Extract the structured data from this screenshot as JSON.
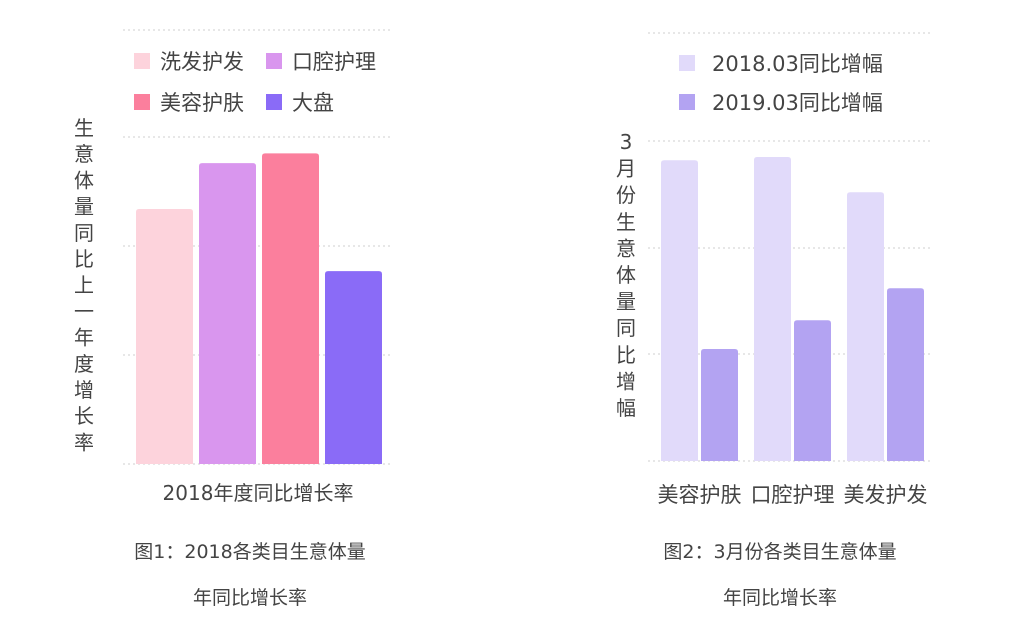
{
  "charts": [
    {
      "caption_line1": "图1：2018各类目生意体量",
      "caption_line2": "年同比增长率"
    },
    {
      "caption_line1": "图2：3月份各类目生意体量",
      "caption_line2": "年同比增长率"
    }
  ],
  "chart_data": [
    {
      "type": "bar",
      "title": "",
      "xlabel": "2018年度同比增长率",
      "ylabel": "生意体量同比上一年度增长率",
      "ylim": [
        0,
        100
      ],
      "grid": true,
      "legend_position": "top",
      "series": [
        {
          "name": "洗发护发",
          "values": [
            78
          ],
          "color": "#fdd3dc"
        },
        {
          "name": "口腔护理",
          "values": [
            92
          ],
          "color": "#d996ee"
        },
        {
          "name": "美容护肤",
          "values": [
            95
          ],
          "color": "#fb7f9d"
        },
        {
          "name": "大盘",
          "values": [
            59
          ],
          "color": "#8a6bf7"
        }
      ]
    },
    {
      "type": "bar",
      "title": "",
      "xlabel": "",
      "ylabel": "3月份生意体量同比增幅",
      "ylim": [
        0,
        100
      ],
      "grid": true,
      "legend_position": "top",
      "categories": [
        "美容护肤",
        "口腔护理",
        "美发护发"
      ],
      "series": [
        {
          "name": "2018.03同比增幅",
          "values": [
            94,
            95,
            84
          ],
          "color": "#e1dafa"
        },
        {
          "name": "2019.03同比增幅",
          "values": [
            35,
            44,
            54
          ],
          "color": "#b3a3f2"
        }
      ]
    }
  ]
}
